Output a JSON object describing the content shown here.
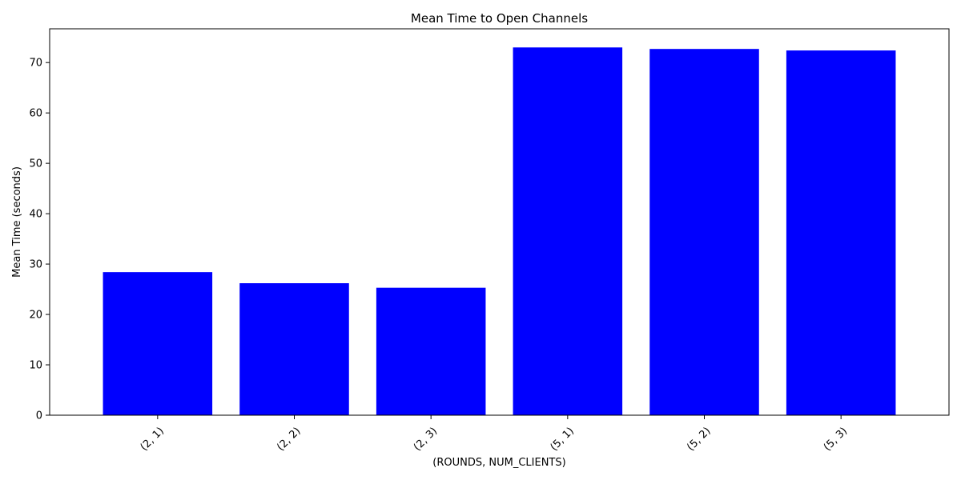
{
  "chart_data": {
    "type": "bar",
    "title": "Mean Time to Open Channels",
    "xlabel": "(ROUNDS, NUM_CLIENTS)",
    "ylabel": "Mean Time (seconds)",
    "categories": [
      "(2, 1)",
      "(2, 2)",
      "(2, 3)",
      "(5, 1)",
      "(5, 2)",
      "(5, 3)"
    ],
    "values": [
      28.4,
      26.2,
      25.3,
      73.0,
      72.7,
      72.4
    ],
    "ylim": [
      0,
      76.7
    ],
    "yticks": [
      0,
      10,
      20,
      30,
      40,
      50,
      60,
      70
    ],
    "bar_color": "#0000ff",
    "grid": false,
    "xtick_rotation": 45
  }
}
